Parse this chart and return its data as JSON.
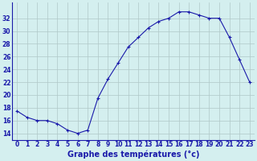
{
  "hours": [
    0,
    1,
    2,
    3,
    4,
    5,
    6,
    7,
    8,
    9,
    10,
    11,
    12,
    13,
    14,
    15,
    16,
    17,
    18,
    19,
    20,
    21,
    22,
    23
  ],
  "temperatures": [
    17.5,
    16.5,
    16.0,
    16.0,
    15.5,
    14.5,
    14.0,
    14.5,
    19.5,
    22.5,
    25.0,
    27.5,
    29.0,
    30.5,
    31.5,
    32.0,
    33.0,
    33.0,
    32.5,
    32.0,
    32.0,
    29.0,
    25.5,
    22.0
  ],
  "line_color": "#1a1aaa",
  "marker": "+",
  "marker_size": 3,
  "marker_linewidth": 0.8,
  "bg_color": "#d4efef",
  "grid_color": "#b0c8c8",
  "xlabel": "Graphe des températures (°c)",
  "xlabel_fontsize": 7,
  "ylabel_ticks": [
    14,
    16,
    18,
    20,
    22,
    24,
    26,
    28,
    30,
    32
  ],
  "ylim": [
    13.0,
    34.5
  ],
  "xlim": [
    -0.5,
    23.5
  ],
  "tick_fontsize": 5.5,
  "axis_label_color": "#1a1aaa",
  "linewidth": 0.8
}
